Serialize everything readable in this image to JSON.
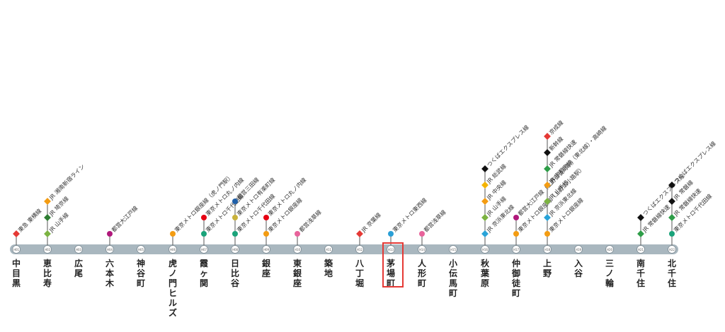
{
  "line": {
    "color": "#a9b7bf"
  },
  "highlight_station": "茅場町",
  "stations": [
    {
      "name": "中目黒",
      "code": "H01",
      "transfers": [
        {
          "label": "東急 東横線",
          "color": "#e53935",
          "shape": "diamond"
        }
      ]
    },
    {
      "name": "恵比寿",
      "code": "H02",
      "transfers": [
        {
          "label": "JR 山手線",
          "color": "#7cb342",
          "shape": "diamond"
        },
        {
          "label": "JR 埼京線",
          "color": "#2e7d32",
          "shape": "diamond"
        },
        {
          "label": "JR 湘南新宿ライン",
          "color": "#f39c12",
          "shape": "diamond"
        }
      ]
    },
    {
      "name": "広尾",
      "code": "H03",
      "transfers": []
    },
    {
      "name": "六本木",
      "code": "H04",
      "transfers": [
        {
          "label": "都営大江戸線",
          "color": "#b0187b",
          "shape": "circle"
        }
      ]
    },
    {
      "name": "神谷町",
      "code": "H05",
      "transfers": []
    },
    {
      "name": "虎ノ門ヒルズ",
      "code": "H06",
      "transfers": [
        {
          "label": "東京メトロ銀座線（虎ノ門駅）",
          "color": "#f39c12",
          "shape": "circle"
        }
      ]
    },
    {
      "name": "霞ヶ関",
      "code": "H07",
      "transfers": [
        {
          "label": "東京メトロ千代田線",
          "color": "#1aa37a",
          "shape": "circle"
        },
        {
          "label": "東京メトロ丸ノ内線",
          "color": "#e60012",
          "shape": "circle"
        }
      ]
    },
    {
      "name": "日比谷",
      "code": "H08",
      "transfers": [
        {
          "label": "東京メトロ千代田線",
          "color": "#1aa37a",
          "shape": "circle"
        },
        {
          "label": "東京メトロ有楽町線",
          "color": "#c9b23c",
          "shape": "circle"
        },
        {
          "label": "都営三田線",
          "color": "#1f5fa8",
          "shape": "circle"
        }
      ]
    },
    {
      "name": "銀座",
      "code": "H09",
      "transfers": [
        {
          "label": "東京メトロ銀座線",
          "color": "#f39c12",
          "shape": "circle"
        },
        {
          "label": "東京メトロ丸ノ内線",
          "color": "#e60012",
          "shape": "circle"
        }
      ]
    },
    {
      "name": "東銀座",
      "code": "H10",
      "transfers": [
        {
          "label": "都営浅草線",
          "color": "#e8639b",
          "shape": "circle"
        }
      ]
    },
    {
      "name": "築地",
      "code": "H11",
      "transfers": []
    },
    {
      "name": "八丁堀",
      "code": "H12",
      "transfers": [
        {
          "label": "JR 京葉線",
          "color": "#e53935",
          "shape": "diamond"
        }
      ]
    },
    {
      "name": "茅場町",
      "code": "H13",
      "transfers": [
        {
          "label": "東京メトロ東西線",
          "color": "#2a9fd6",
          "shape": "circle"
        }
      ]
    },
    {
      "name": "人形町",
      "code": "H14",
      "transfers": [
        {
          "label": "都営浅草線",
          "color": "#e8639b",
          "shape": "circle"
        }
      ]
    },
    {
      "name": "小伝馬町",
      "code": "H15",
      "transfers": []
    },
    {
      "name": "秋葉原",
      "code": "H16",
      "transfers": [
        {
          "label": "JR 京浜東北線",
          "color": "#29a3d8",
          "shape": "diamond"
        },
        {
          "label": "JR 山手線",
          "color": "#7cb342",
          "shape": "diamond"
        },
        {
          "label": "JR 中央線",
          "color": "#f39c12",
          "shape": "diamond"
        },
        {
          "label": "JR 総武線",
          "color": "#f4b400",
          "shape": "diamond"
        },
        {
          "label": "つくばエクスプレス線",
          "color": "#111111",
          "shape": "diamond"
        }
      ]
    },
    {
      "name": "仲御徒町",
      "code": "H17",
      "transfers": [
        {
          "label": "東京メトロ銀座線（上野広小路駅）",
          "color": "#f39c12",
          "shape": "circle"
        },
        {
          "label": "都営大江戸線（上野御徒町駅）",
          "color": "#b0187b",
          "shape": "circle"
        }
      ]
    },
    {
      "name": "上野",
      "code": "H18",
      "transfers": [
        {
          "label": "東京メトロ銀座線",
          "color": "#f39c12",
          "shape": "circle"
        },
        {
          "label": "JR 京浜東北線",
          "color": "#29a3d8",
          "shape": "diamond"
        },
        {
          "label": "JR 山手線",
          "color": "#7cb342",
          "shape": "diamond"
        },
        {
          "label": "JR 宇都宮線（東北線）・高崎線",
          "color": "#f39c12",
          "shape": "diamond"
        },
        {
          "label": "JR 常磐線快速",
          "color": "#2e9d48",
          "shape": "diamond"
        },
        {
          "label": "新幹線",
          "color": "#111111",
          "shape": "diamond"
        },
        {
          "label": "京成線",
          "color": "#e53935",
          "shape": "diamond"
        }
      ]
    },
    {
      "name": "入谷",
      "code": "H19",
      "transfers": []
    },
    {
      "name": "三ノ輪",
      "code": "H20",
      "transfers": []
    },
    {
      "name": "南千住",
      "code": "H21",
      "transfers": [
        {
          "label": "JR 常磐線快速",
          "color": "#2e9d48",
          "shape": "diamond"
        },
        {
          "label": "つくばエクスプレス線",
          "color": "#111111",
          "shape": "diamond"
        }
      ]
    },
    {
      "name": "北千住",
      "code": "H22",
      "transfers": [
        {
          "label": "東京メトロ千代田線",
          "color": "#1aa37a",
          "shape": "circle"
        },
        {
          "label": "JR 常磐線快速",
          "color": "#2e9d48",
          "shape": "diamond"
        },
        {
          "label": "JR 常磐線",
          "color": "#111111",
          "shape": "diamond"
        },
        {
          "label": "つくばエクスプレス線",
          "color": "#111111",
          "shape": "diamond"
        }
      ]
    }
  ]
}
